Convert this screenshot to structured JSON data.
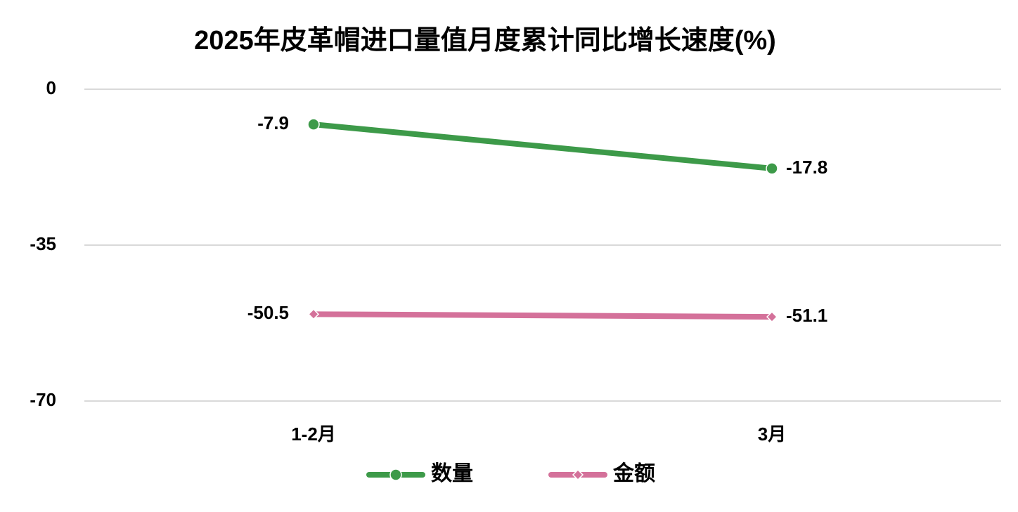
{
  "chart_data": {
    "type": "line",
    "title": "2025年皮革帽进口量值月度累计同比增长速度(%)",
    "categories": [
      "1-2月",
      "3月"
    ],
    "series": [
      {
        "name": "数量",
        "color": "#3d9a49",
        "marker": "circle",
        "values": [
          -7.9,
          -17.8
        ]
      },
      {
        "name": "金额",
        "color": "#d4719a",
        "marker": "diamond",
        "values": [
          -50.5,
          -51.1
        ]
      }
    ],
    "ylim": [
      -70,
      0
    ],
    "yticks": [
      0,
      -35,
      -70
    ],
    "grid": true,
    "legend": "bottom"
  }
}
